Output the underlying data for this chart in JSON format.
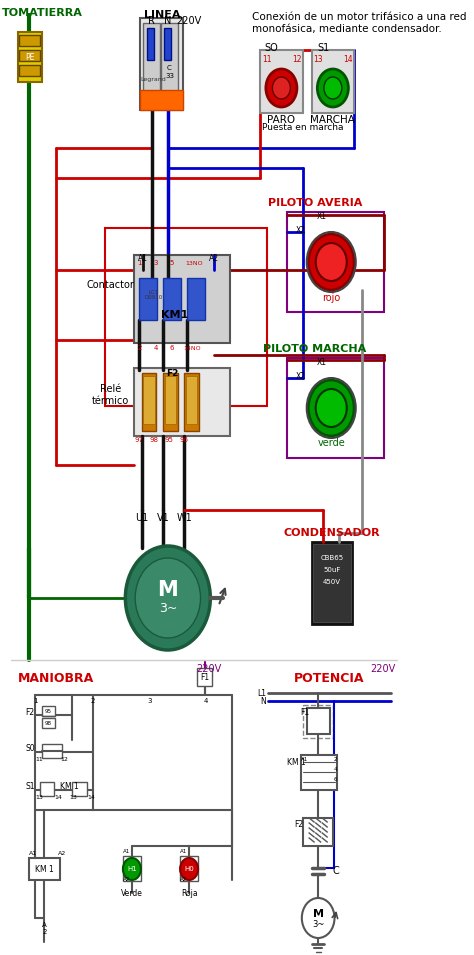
{
  "title": "Conexión de un motor trifásico a una red\nmonofásica, mediante condensador.",
  "bg_color": "#ffffff",
  "tomatierra_label": "TOMATIERRA",
  "linea_label": "LINEA",
  "voltage_label": "220V",
  "paro_label": "PARO",
  "marcha_label": "MARCHA",
  "puesta_label": "Puesta en marcha",
  "so_label": "SO",
  "s1_label": "S1",
  "piloto_averia_label": "PILOTO AVERIA",
  "piloto_marcha_label": "PILOTO MARCHA",
  "rojo_label": "rojo",
  "verde_label": "verde",
  "contactor_label": "Contactor",
  "km1_label": "KM1",
  "rele_termico_label": "Relé\ntérmico",
  "f2_label": "F2",
  "condensador_label": "CONDENSADOR",
  "u1v1w1_labels": [
    "U1",
    "V1",
    "W1"
  ],
  "maniobra_label": "MANIOBRA",
  "potencia_label": "POTENCIA",
  "km1_bottom_label": "KM 1",
  "verde_bottom": "Verde",
  "roja_bottom": "Roja",
  "colors": {
    "red": "#cc0000",
    "blue": "#0000cc",
    "black": "#111111",
    "dark_green": "#006600",
    "purple": "#800080",
    "dark_red": "#8B0000",
    "gray": "#888888"
  }
}
